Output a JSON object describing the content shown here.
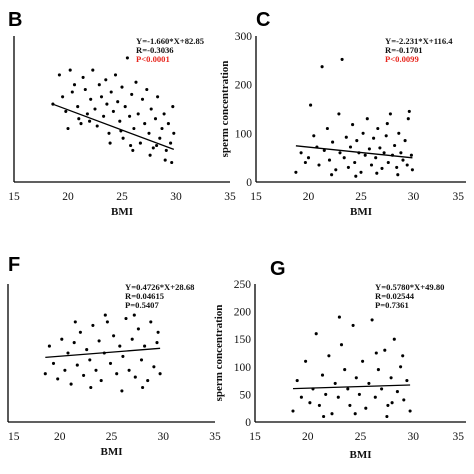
{
  "colors": {
    "points": "#000000",
    "axis": "#000000",
    "significant": "#e8261e"
  },
  "panels": [
    {
      "label": "B",
      "regression": {
        "intercept": 82.85,
        "slope": -1.66
      },
      "stats": {
        "equation": "Y=-1.660*X+82.85",
        "r": "R=-0.3036",
        "p": "P<0.0001",
        "p_significant": true
      }
    },
    {
      "label": "C",
      "regression": {
        "intercept": 116.4,
        "slope": -2.231
      },
      "stats": {
        "equation": "Y=-2.231*X+116.4",
        "r": "R=-0.1701",
        "p": "P<0.0099",
        "p_significant": true
      }
    },
    {
      "label": "F",
      "regression": {
        "intercept": 28.68,
        "slope": 0.4726
      },
      "stats": {
        "equation": "Y=0.4726*X+28.68",
        "r": "R=0.04615",
        "p": "P=0.5407",
        "p_significant": false
      }
    },
    {
      "label": "G",
      "regression": {
        "intercept": 49.8,
        "slope": 0.578
      },
      "stats": {
        "equation": "Y=0.5780*X+49.80",
        "r": "R=0.02544",
        "p": "P=0.7361",
        "p_significant": false
      }
    }
  ],
  "chart_data": [
    {
      "type": "scatter",
      "panel": "B",
      "xlabel": "BMI",
      "ylabel": "",
      "xlim": [
        15,
        35
      ],
      "ylim": [
        20,
        80
      ],
      "xticks": [
        "15",
        "20",
        "25",
        "30",
        "35"
      ],
      "yticks": [],
      "grid": false,
      "points": [
        [
          18.6,
          52
        ],
        [
          19.2,
          64
        ],
        [
          19.5,
          55
        ],
        [
          19.8,
          49
        ],
        [
          20.2,
          66
        ],
        [
          20.4,
          57
        ],
        [
          20.6,
          60
        ],
        [
          20.9,
          51
        ],
        [
          21.2,
          44
        ],
        [
          21.4,
          63
        ],
        [
          21.6,
          58
        ],
        [
          21.8,
          48
        ],
        [
          22.1,
          54
        ],
        [
          22.3,
          66
        ],
        [
          22.5,
          50
        ],
        [
          22.7,
          43
        ],
        [
          22.9,
          60
        ],
        [
          23.1,
          55
        ],
        [
          23.3,
          47
        ],
        [
          23.5,
          62
        ],
        [
          23.6,
          52
        ],
        [
          23.8,
          40
        ],
        [
          24.0,
          57
        ],
        [
          24.2,
          49
        ],
        [
          24.4,
          64
        ],
        [
          24.6,
          53
        ],
        [
          24.8,
          45
        ],
        [
          25.0,
          59
        ],
        [
          25.1,
          38
        ],
        [
          25.3,
          51
        ],
        [
          25.5,
          71
        ],
        [
          25.7,
          47
        ],
        [
          25.9,
          56
        ],
        [
          26.1,
          42
        ],
        [
          26.3,
          61
        ],
        [
          26.5,
          48
        ],
        [
          26.7,
          36
        ],
        [
          26.9,
          54
        ],
        [
          27.1,
          44
        ],
        [
          27.3,
          58
        ],
        [
          27.5,
          40
        ],
        [
          27.7,
          50
        ],
        [
          27.9,
          34
        ],
        [
          28.1,
          46
        ],
        [
          28.3,
          55
        ],
        [
          28.5,
          38
        ],
        [
          28.7,
          42
        ],
        [
          28.9,
          48
        ],
        [
          29.1,
          33
        ],
        [
          29.3,
          44
        ],
        [
          29.5,
          36
        ],
        [
          29.7,
          51
        ],
        [
          29.8,
          40
        ],
        [
          22.0,
          45
        ],
        [
          23.9,
          36
        ],
        [
          26.0,
          33
        ],
        [
          27.6,
          31
        ],
        [
          29.0,
          29
        ],
        [
          20.0,
          42
        ],
        [
          24.9,
          41
        ],
        [
          21.0,
          46
        ],
        [
          25.8,
          35
        ],
        [
          28.2,
          35
        ],
        [
          29.6,
          28
        ]
      ],
      "regression": {
        "slope": -1.66,
        "intercept": 82.85
      }
    },
    {
      "type": "scatter",
      "panel": "C",
      "xlabel": "BMI",
      "ylabel": "sperm concentration",
      "xlim": [
        15,
        35
      ],
      "ylim": [
        0,
        300
      ],
      "xticks": [
        "15",
        "20",
        "25",
        "30",
        "35"
      ],
      "yticks": [
        "0",
        "100",
        "200",
        "300"
      ],
      "grid": false,
      "points": [
        [
          18.8,
          20
        ],
        [
          19.3,
          60
        ],
        [
          19.7,
          40
        ],
        [
          20.2,
          158
        ],
        [
          20.5,
          95
        ],
        [
          20.8,
          72
        ],
        [
          21.0,
          35
        ],
        [
          21.3,
          237
        ],
        [
          21.5,
          65
        ],
        [
          21.8,
          110
        ],
        [
          22.0,
          45
        ],
        [
          22.3,
          82
        ],
        [
          22.6,
          25
        ],
        [
          22.9,
          140
        ],
        [
          23.0,
          60
        ],
        [
          23.2,
          252
        ],
        [
          23.4,
          50
        ],
        [
          23.6,
          92
        ],
        [
          23.8,
          30
        ],
        [
          24.0,
          72
        ],
        [
          24.2,
          118
        ],
        [
          24.4,
          40
        ],
        [
          24.6,
          85
        ],
        [
          24.8,
          60
        ],
        [
          25.0,
          20
        ],
        [
          25.2,
          100
        ],
        [
          25.4,
          55
        ],
        [
          25.6,
          130
        ],
        [
          25.8,
          68
        ],
        [
          26.0,
          35
        ],
        [
          26.2,
          90
        ],
        [
          26.4,
          50
        ],
        [
          26.6,
          110
        ],
        [
          26.8,
          70
        ],
        [
          27.0,
          28
        ],
        [
          27.2,
          60
        ],
        [
          27.4,
          95
        ],
        [
          27.6,
          40
        ],
        [
          27.8,
          140
        ],
        [
          28.0,
          55
        ],
        [
          28.2,
          75
        ],
        [
          28.4,
          30
        ],
        [
          28.6,
          100
        ],
        [
          28.8,
          60
        ],
        [
          29.0,
          45
        ],
        [
          29.2,
          85
        ],
        [
          29.4,
          35
        ],
        [
          29.6,
          145
        ],
        [
          29.8,
          55
        ],
        [
          29.9,
          25
        ],
        [
          22.2,
          15
        ],
        [
          24.5,
          12
        ],
        [
          26.5,
          18
        ],
        [
          28.5,
          15
        ],
        [
          20.0,
          50
        ],
        [
          27.5,
          120
        ],
        [
          29.5,
          130
        ]
      ],
      "regression": {
        "slope": -2.231,
        "intercept": 116.4
      }
    },
    {
      "type": "scatter",
      "panel": "F",
      "xlabel": "BMI",
      "ylabel": "",
      "xlim": [
        15,
        35
      ],
      "ylim": [
        0,
        80
      ],
      "xticks": [
        "15",
        "20",
        "25",
        "30",
        "35"
      ],
      "yticks": [],
      "grid": false,
      "points": [
        [
          18.6,
          28
        ],
        [
          19.0,
          44
        ],
        [
          19.4,
          34
        ],
        [
          19.8,
          25
        ],
        [
          20.2,
          48
        ],
        [
          20.5,
          30
        ],
        [
          20.8,
          40
        ],
        [
          21.1,
          22
        ],
        [
          21.4,
          46
        ],
        [
          21.7,
          33
        ],
        [
          22.0,
          52
        ],
        [
          22.3,
          27
        ],
        [
          22.6,
          42
        ],
        [
          22.9,
          36
        ],
        [
          23.2,
          56
        ],
        [
          23.5,
          30
        ],
        [
          23.8,
          47
        ],
        [
          24.0,
          24
        ],
        [
          24.3,
          40
        ],
        [
          24.6,
          58
        ],
        [
          24.9,
          34
        ],
        [
          25.2,
          50
        ],
        [
          25.5,
          28
        ],
        [
          25.8,
          44
        ],
        [
          26.1,
          38
        ],
        [
          26.4,
          60
        ],
        [
          26.7,
          30
        ],
        [
          27.0,
          48
        ],
        [
          27.3,
          26
        ],
        [
          27.6,
          54
        ],
        [
          27.9,
          36
        ],
        [
          28.2,
          44
        ],
        [
          28.5,
          24
        ],
        [
          28.8,
          58
        ],
        [
          29.1,
          32
        ],
        [
          29.4,
          46
        ],
        [
          29.7,
          28
        ],
        [
          23.0,
          20
        ],
        [
          26.0,
          18
        ],
        [
          28.0,
          20
        ],
        [
          21.5,
          58
        ],
        [
          24.4,
          62
        ],
        [
          27.2,
          62
        ],
        [
          29.5,
          52
        ]
      ],
      "regression": {
        "slope": 0.4726,
        "intercept": 28.68
      }
    },
    {
      "type": "scatter",
      "panel": "G",
      "xlabel": "BMI",
      "ylabel": "sperm concentration",
      "xlim": [
        15,
        35
      ],
      "ylim": [
        0,
        250
      ],
      "xticks": [
        "15",
        "20",
        "25",
        "30",
        "35"
      ],
      "yticks": [
        "0",
        "50",
        "100",
        "150",
        "200",
        "250"
      ],
      "grid": false,
      "points": [
        [
          18.6,
          20
        ],
        [
          19.0,
          75
        ],
        [
          19.4,
          45
        ],
        [
          19.8,
          110
        ],
        [
          20.2,
          35
        ],
        [
          20.5,
          60
        ],
        [
          20.8,
          160
        ],
        [
          21.1,
          30
        ],
        [
          21.4,
          85
        ],
        [
          21.7,
          50
        ],
        [
          22.0,
          120
        ],
        [
          22.3,
          15
        ],
        [
          22.6,
          70
        ],
        [
          22.9,
          45
        ],
        [
          23.2,
          140
        ],
        [
          23.5,
          95
        ],
        [
          23.8,
          60
        ],
        [
          24.0,
          30
        ],
        [
          24.3,
          175
        ],
        [
          24.6,
          80
        ],
        [
          24.9,
          50
        ],
        [
          25.2,
          110
        ],
        [
          25.5,
          25
        ],
        [
          25.8,
          70
        ],
        [
          26.1,
          185
        ],
        [
          26.4,
          45
        ],
        [
          26.7,
          95
        ],
        [
          27.0,
          60
        ],
        [
          27.3,
          130
        ],
        [
          27.6,
          30
        ],
        [
          27.9,
          80
        ],
        [
          28.2,
          150
        ],
        [
          28.5,
          55
        ],
        [
          28.8,
          100
        ],
        [
          29.1,
          40
        ],
        [
          29.4,
          75
        ],
        [
          29.7,
          20
        ],
        [
          21.5,
          10
        ],
        [
          24.5,
          15
        ],
        [
          27.5,
          10
        ],
        [
          29.0,
          120
        ],
        [
          23.0,
          190
        ],
        [
          26.5,
          125
        ],
        [
          28.0,
          35
        ]
      ],
      "regression": {
        "slope": 0.578,
        "intercept": 49.8
      }
    }
  ]
}
